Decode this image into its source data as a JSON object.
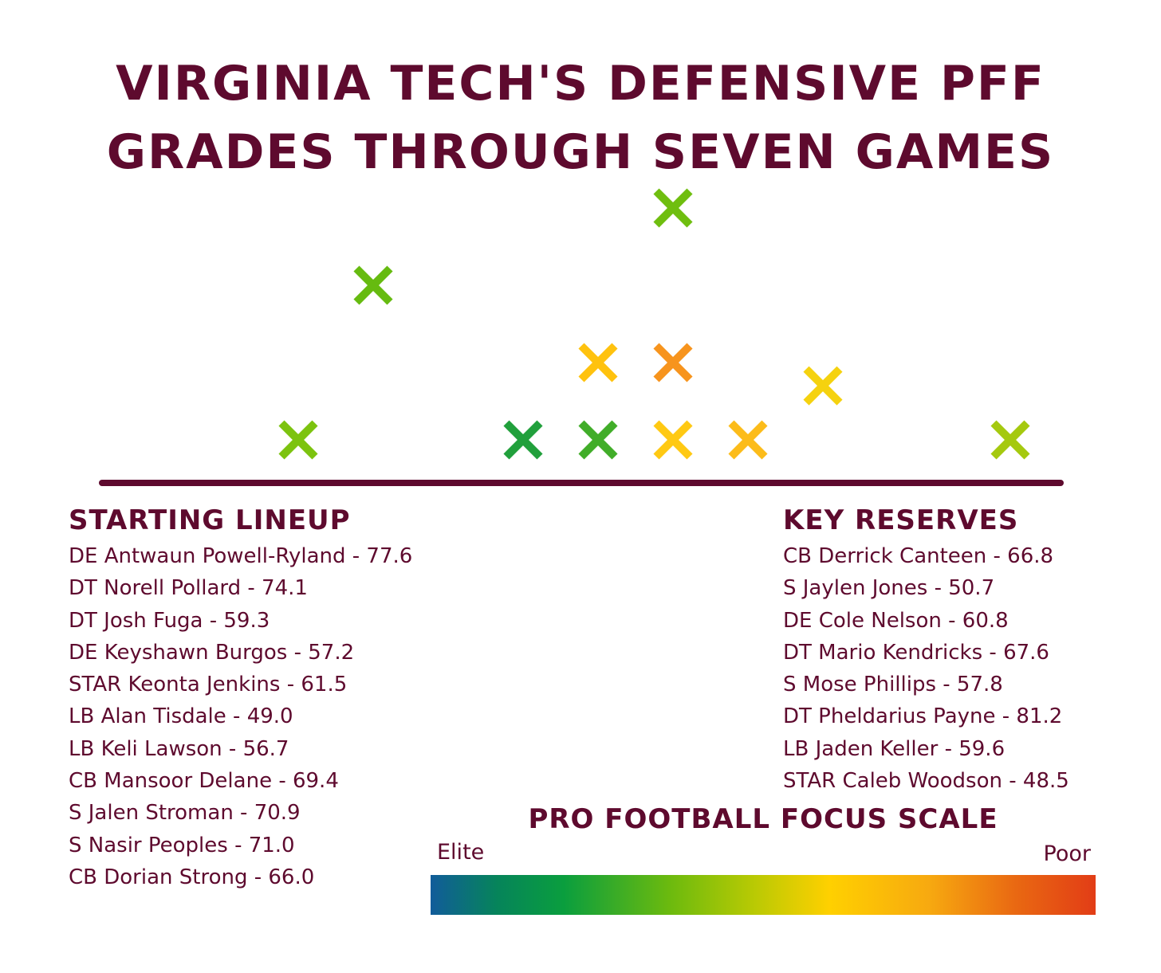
{
  "chart_data": {
    "type": "scatter",
    "title": "Virginia Tech's Defensive PFF Grades Through Seven Games",
    "points": [
      {
        "color": "#6fbe0f",
        "level": 1,
        "col": 8
      },
      {
        "color": "#66bb10",
        "level": 2,
        "col": 4
      },
      {
        "color": "#ffc20e",
        "level": 3,
        "col": 7
      },
      {
        "color": "#f7941d",
        "level": 3,
        "col": 8
      },
      {
        "color": "#f5d20f",
        "level": 3.3,
        "col": 10
      },
      {
        "color": "#7cc30f",
        "level": 4,
        "col": 3
      },
      {
        "color": "#21a03c",
        "level": 4,
        "col": 6
      },
      {
        "color": "#41ad29",
        "level": 4,
        "col": 7
      },
      {
        "color": "#ffc913",
        "level": 4,
        "col": 8
      },
      {
        "color": "#fcbc1a",
        "level": 4,
        "col": 9
      },
      {
        "color": "#a5c90f",
        "level": 4,
        "col": 12.5
      }
    ]
  },
  "groups": {
    "starting_lineup": {
      "title": "Starting Lineup",
      "players": [
        "DE Antwaun Powell-Ryland - 77.6",
        "DT Norell Pollard - 74.1",
        "DT Josh Fuga - 59.3",
        "DE Keyshawn Burgos - 57.2",
        "STAR Keonta Jenkins - 61.5",
        "LB Alan Tisdale - 49.0",
        "LB Keli Lawson - 56.7",
        "CB Mansoor Delane - 69.4",
        "S Jalen Stroman - 70.9",
        "S Nasir Peoples - 71.0",
        "CB Dorian Strong - 66.0"
      ]
    },
    "key_reserves": {
      "title": "Key Reserves",
      "players": [
        "CB Derrick Canteen - 66.8",
        "S Jaylen Jones - 50.7",
        "DE Cole Nelson - 60.8",
        "DT Mario Kendricks - 67.6",
        "S Mose Phillips - 57.8",
        "DT Pheldarius Payne - 81.2",
        "LB Jaden Keller - 59.6",
        "STAR Caleb Woodson - 48.5"
      ]
    }
  },
  "scale": {
    "title": "Pro Football Focus Scale",
    "low_label": "Elite",
    "high_label": "Poor",
    "colors": [
      "#115c9a",
      "#06845a",
      "#0a9e3e",
      "#6cba0e",
      "#b5c904",
      "#ffd000",
      "#f7a910",
      "#e96812",
      "#e23d16"
    ]
  },
  "colors": {
    "primary": "#5e0a2e",
    "background": "#ffffff"
  }
}
